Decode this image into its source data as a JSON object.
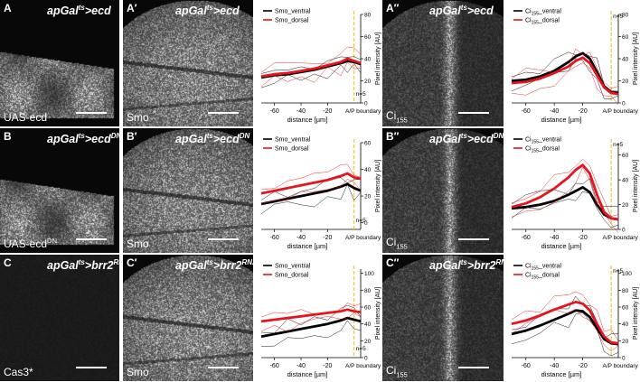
{
  "rows": [
    {
      "panels": [
        {
          "id": "A",
          "title_main": "apGal",
          "title_sup": "ts",
          "title_rest": ">ecd",
          "stain_main": "UAS-ecd",
          "stain_sup": "",
          "stain_sub": ""
        },
        {
          "id": "A′",
          "title_main": "apGal",
          "title_sup": "ts",
          "title_rest": ">ecd",
          "stain_main": "Smo",
          "stain_sup": "",
          "stain_sub": ""
        },
        {
          "id": "A″",
          "title_main": "apGal",
          "title_sup": "ts",
          "title_rest": ">ecd",
          "stain_main": "Ci",
          "stain_sup": "",
          "stain_sub": "155"
        }
      ]
    },
    {
      "panels": [
        {
          "id": "B",
          "title_main": "apGal",
          "title_sup": "ts",
          "title_rest": ">ecd",
          "title_tail": "DN",
          "stain_main": "UAS-ecd",
          "stain_sup": "DN",
          "stain_sub": ""
        },
        {
          "id": "B′",
          "title_main": "apGal",
          "title_sup": "ts",
          "title_rest": ">ecd",
          "title_tail": "DN",
          "stain_main": "Smo",
          "stain_sup": "",
          "stain_sub": ""
        },
        {
          "id": "B″",
          "title_main": "apGal",
          "title_sup": "ts",
          "title_rest": ">ecd",
          "title_tail": "DN",
          "stain_main": "Ci",
          "stain_sup": "",
          "stain_sub": "155"
        }
      ]
    },
    {
      "panels": [
        {
          "id": "C",
          "title_main": "apGal",
          "title_sup": "ts",
          "title_rest": ">brr2",
          "title_tail": "RNAi",
          "stain_main": "Cas3*",
          "stain_sup": "",
          "stain_sub": ""
        },
        {
          "id": "C′",
          "title_main": "apGal",
          "title_sup": "ts",
          "title_rest": ">brr2",
          "title_tail": "RNAi",
          "stain_main": "Smo",
          "stain_sup": "",
          "stain_sub": ""
        },
        {
          "id": "C″",
          "title_main": "apGal",
          "title_sup": "ts",
          "title_rest": ">brr2",
          "title_tail": "RNAi",
          "stain_main": "Ci",
          "stain_sup": "",
          "stain_sub": "155"
        }
      ]
    }
  ],
  "colors": {
    "ventral": "#000000",
    "dorsal": "#e8141c",
    "boundary": "#f2c417"
  },
  "chart_data": [
    {
      "type": "line",
      "panel": "A′",
      "xlabel": "distance [µm]",
      "ylabel": "Pixel intensity [AU]",
      "boundary_label": "A/P boundary",
      "n_label": "n=5",
      "x_ticks": [
        "-60",
        "-40",
        "-20"
      ],
      "y_ticks": [
        "0",
        "20",
        "40",
        "60",
        "80"
      ],
      "ylim": [
        0,
        80
      ],
      "xlim": [
        -70,
        5
      ],
      "legend": [
        {
          "name": "Smo_ventral",
          "sub": ""
        },
        {
          "name": "Smo_dorsal",
          "sub": ""
        }
      ],
      "x": [
        -70,
        -60,
        -50,
        -40,
        -30,
        -20,
        -10,
        -5,
        0,
        5
      ],
      "series": [
        {
          "key": "ventral",
          "values": [
            23,
            25,
            26,
            28,
            30,
            33,
            36,
            38,
            37,
            35
          ]
        },
        {
          "key": "dorsal",
          "values": [
            24,
            26,
            27,
            29,
            31,
            34,
            37,
            40,
            38,
            36
          ]
        }
      ]
    },
    {
      "type": "line",
      "panel": "A″",
      "xlabel": "distance [µm]",
      "ylabel": "Pixel intensity [AU]",
      "boundary_label": "A/P boundary",
      "n_label": "n=5",
      "x_ticks": [
        "-60",
        "-40",
        "-20"
      ],
      "y_ticks": [
        "0",
        "20",
        "40",
        "60",
        "80"
      ],
      "ylim": [
        0,
        80
      ],
      "xlim": [
        -70,
        5
      ],
      "legend": [
        {
          "name": "Ci",
          "sub": "155",
          "tail": "_ventral"
        },
        {
          "name": "Ci",
          "sub": "155",
          "tail": "_dorsal"
        }
      ],
      "x": [
        -70,
        -60,
        -50,
        -40,
        -30,
        -25,
        -20,
        -15,
        -10,
        -5,
        0,
        5
      ],
      "series": [
        {
          "key": "ventral",
          "values": [
            20,
            21,
            24,
            29,
            37,
            42,
            45,
            40,
            28,
            15,
            10,
            9
          ]
        },
        {
          "key": "dorsal",
          "values": [
            18,
            19,
            22,
            27,
            33,
            38,
            41,
            36,
            25,
            14,
            9,
            8
          ]
        }
      ]
    },
    {
      "type": "line",
      "panel": "B′",
      "xlabel": "distance [µm]",
      "ylabel": "Pixel intensity [AU]",
      "boundary_label": "A/P boundary",
      "n_label": "n=5",
      "x_ticks": [
        "-60",
        "-40",
        "-20"
      ],
      "y_ticks": [
        "0",
        "20",
        "40",
        "60"
      ],
      "ylim": [
        -5,
        60
      ],
      "xlim": [
        -70,
        5
      ],
      "legend": [
        {
          "name": "Smo_ventral",
          "sub": ""
        },
        {
          "name": "Smo_dorsal",
          "sub": ""
        }
      ],
      "x": [
        -70,
        -60,
        -50,
        -40,
        -30,
        -20,
        -10,
        -5,
        0,
        5
      ],
      "series": [
        {
          "key": "ventral",
          "values": [
            14,
            16,
            18,
            20,
            22,
            24,
            27,
            29,
            26,
            24
          ]
        },
        {
          "key": "dorsal",
          "values": [
            22,
            24,
            26,
            28,
            30,
            32,
            35,
            37,
            34,
            33
          ]
        }
      ]
    },
    {
      "type": "line",
      "panel": "B″",
      "xlabel": "distance [µm]",
      "ylabel": "Pixel intensity [AU]",
      "boundary_label": "A/P boundary",
      "n_label": "n=5",
      "x_ticks": [
        "-60",
        "-40",
        "-20"
      ],
      "y_ticks": [
        "0",
        "20",
        "40",
        "60"
      ],
      "ylim": [
        0,
        70
      ],
      "xlim": [
        -70,
        5
      ],
      "legend": [
        {
          "name": "Ci",
          "sub": "155",
          "tail": "_ventral"
        },
        {
          "name": "Ci",
          "sub": "155",
          "tail": "_dorsal"
        }
      ],
      "x": [
        -70,
        -60,
        -50,
        -40,
        -30,
        -25,
        -20,
        -15,
        -10,
        -5,
        0,
        5
      ],
      "series": [
        {
          "key": "ventral",
          "values": [
            17,
            18,
            20,
            23,
            28,
            31,
            34,
            30,
            20,
            12,
            9,
            8
          ]
        },
        {
          "key": "dorsal",
          "values": [
            18,
            21,
            26,
            33,
            42,
            48,
            52,
            45,
            28,
            14,
            9,
            8
          ]
        }
      ]
    },
    {
      "type": "line",
      "panel": "C′",
      "xlabel": "distance [µm]",
      "ylabel": "Pixel intensity [AU]",
      "boundary_label": "A/P boundary",
      "n_label": "n=5",
      "x_ticks": [
        "-60",
        "-40",
        "-20"
      ],
      "y_ticks": [
        "0",
        "20",
        "40",
        "60",
        "80",
        "100"
      ],
      "ylim": [
        0,
        105
      ],
      "xlim": [
        -70,
        5
      ],
      "legend": [
        {
          "name": "Smo_ventral",
          "sub": ""
        },
        {
          "name": "Smo_dorsal",
          "sub": ""
        }
      ],
      "x": [
        -70,
        -60,
        -50,
        -40,
        -30,
        -20,
        -10,
        -5,
        0,
        5
      ],
      "series": [
        {
          "key": "ventral",
          "values": [
            25,
            28,
            31,
            34,
            37,
            40,
            44,
            47,
            45,
            43
          ]
        },
        {
          "key": "dorsal",
          "values": [
            43,
            45,
            47,
            49,
            51,
            53,
            55,
            57,
            55,
            54
          ]
        }
      ]
    },
    {
      "type": "line",
      "panel": "C″",
      "xlabel": "distance [µm]",
      "ylabel": "Pixel intensity [AU]",
      "boundary_label": "A/P boundary",
      "n_label": "n=5",
      "x_ticks": [
        "-60",
        "-40",
        "-20"
      ],
      "y_ticks": [
        "0",
        "20",
        "40",
        "60",
        "80",
        "100"
      ],
      "ylim": [
        0,
        105
      ],
      "xlim": [
        -70,
        5
      ],
      "legend": [
        {
          "name": "Ci",
          "sub": "155",
          "tail": "_ventral"
        },
        {
          "name": "Ci",
          "sub": "155",
          "tail": "_dorsal"
        }
      ],
      "x": [
        -70,
        -60,
        -50,
        -40,
        -30,
        -25,
        -20,
        -15,
        -10,
        -5,
        0,
        5
      ],
      "series": [
        {
          "key": "ventral",
          "values": [
            28,
            32,
            38,
            45,
            52,
            56,
            55,
            48,
            35,
            22,
            17,
            16
          ]
        },
        {
          "key": "dorsal",
          "values": [
            40,
            44,
            50,
            57,
            63,
            66,
            64,
            56,
            40,
            25,
            18,
            17
          ]
        }
      ]
    }
  ]
}
